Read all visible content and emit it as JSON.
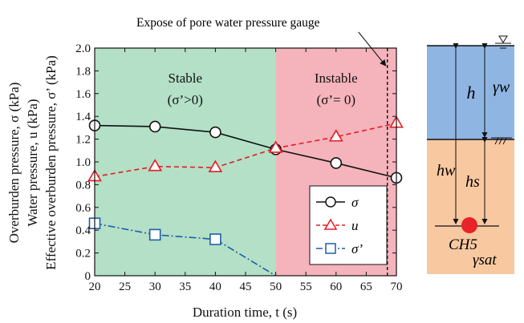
{
  "chart_data": {
    "type": "line",
    "title": "",
    "xlabel": "Duration time, t (s)",
    "ylabel_lines": [
      "Overburden pressure, σ (kPa)",
      "Water pressure, u (kPa)",
      "Effective overburden pressure, σ’ (kPa)"
    ],
    "xlim": [
      20,
      70
    ],
    "ylim": [
      0,
      2.0
    ],
    "x_ticks": [
      20,
      25,
      30,
      35,
      40,
      45,
      50,
      55,
      60,
      65,
      70
    ],
    "y_ticks": [
      "0",
      "0.2",
      "0.4",
      "0.6",
      "0.8",
      "1.0",
      "1.2",
      "1.4",
      "1.6",
      "1.8",
      "2.0"
    ],
    "grid": false,
    "legend_position": "lower-right",
    "regions": [
      {
        "label": "Stable",
        "condition": "(σ’>0)",
        "x_range": [
          20,
          50
        ],
        "color": "#b3e0c6"
      },
      {
        "label": "Instable",
        "condition": "(σ’= 0)",
        "x_range": [
          50,
          70
        ],
        "color": "#f5b3bb"
      }
    ],
    "annotation": {
      "text": "Expose of pore water pressure gauge",
      "x": 68.5
    },
    "series": [
      {
        "name": "σ",
        "marker": "circle",
        "line": "solid",
        "color": "#111111",
        "x": [
          20,
          30,
          40,
          50,
          60,
          70
        ],
        "values": [
          1.32,
          1.31,
          1.26,
          1.11,
          0.99,
          0.86
        ]
      },
      {
        "name": "u",
        "marker": "triangle",
        "line": "dashed",
        "color": "#e31b23",
        "x": [
          20,
          30,
          40,
          50,
          60,
          70
        ],
        "values": [
          0.87,
          0.96,
          0.95,
          1.12,
          1.22,
          1.34
        ]
      },
      {
        "name": "σ’",
        "marker": "square",
        "line": "dashdot",
        "color": "#1f5fa8",
        "x": [
          20,
          30,
          40,
          50
        ],
        "values": [
          0.46,
          0.36,
          0.32,
          0.0
        ]
      }
    ]
  },
  "diagram": {
    "labels": {
      "h": "h",
      "gamma_w": "γw",
      "h_w": "hw",
      "h_s": "hs",
      "ch5": "CH5",
      "gamma_sat": "γsat"
    },
    "colors": {
      "water": "#8fb5e3",
      "soil": "#f8c8a0",
      "sensor": "#e8232a"
    }
  }
}
